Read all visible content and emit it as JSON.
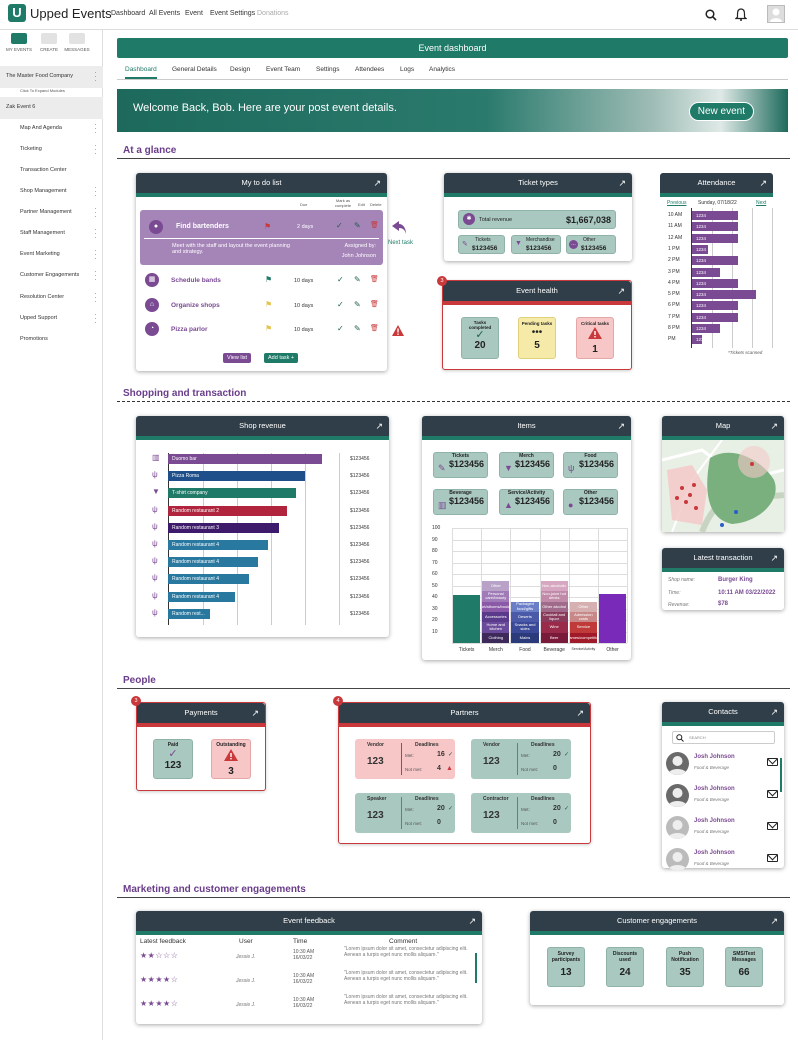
{
  "app": {
    "name": "Upped Events",
    "logo_letter": "U"
  },
  "topnav": [
    "Dashboard",
    "All Events",
    "Event",
    "Event Settings",
    "Donations"
  ],
  "sidebar": {
    "tabs": [
      "MY EVENTS",
      "CREATE",
      "MESSAGES"
    ],
    "company": "The Master Food Company",
    "expand_hint": "Click To Expand Modules",
    "event": "Zak Event 6",
    "items": [
      "Map And Agenda",
      "Ticketing",
      "Transaction Center",
      "Shop Management",
      "Partner Management",
      "Staff Management",
      "Event Marketing",
      "Customer Engagements",
      "Resolution Center",
      "Upped Support",
      "Promotions"
    ]
  },
  "dashboard": {
    "title": "Event dashboard",
    "tabs": [
      "Dashboard",
      "General Details",
      "Design",
      "Event Team",
      "Settings",
      "Attendees",
      "Logs",
      "Analytics"
    ],
    "welcome": "Welcome Back, Bob.  Here are your post event details.",
    "new_event": "New event"
  },
  "sections": {
    "glance": "At a glance",
    "shopping": "Shopping and transaction",
    "people": "People",
    "marketing": "Marketing and customer engagements"
  },
  "todo": {
    "title": "My to do list",
    "cols": [
      "Due",
      "Mark as complete",
      "Edit",
      "Delete"
    ],
    "featured": {
      "name": "Find bartenders",
      "due": "2 days",
      "desc": "Meet with the staff and layout the event planning and strategy.",
      "assigned_label": "Assigned by:",
      "assigned": "John Johnson"
    },
    "next_task": "Next task",
    "rows": [
      {
        "name": "Schedule bands",
        "due": "10 days"
      },
      {
        "name": "Organize shops",
        "due": "10 days"
      },
      {
        "name": "Pizza parlor",
        "due": "10 days"
      }
    ],
    "view_list": "View list",
    "add_task": "Add task +"
  },
  "ticket_types": {
    "title": "Ticket types",
    "total_label": "Total revenue",
    "total": "$1,667,038",
    "items": [
      {
        "label": "Tickets",
        "value": "$123456"
      },
      {
        "label": "Merchandise",
        "value": "$123456"
      },
      {
        "label": "Other",
        "value": "$123456"
      }
    ]
  },
  "event_health": {
    "title": "Event health",
    "badge": "3",
    "tiles": [
      {
        "label": "Tasks completed",
        "value": "20"
      },
      {
        "label": "Pending tasks",
        "value": "5"
      },
      {
        "label": "Critical tasks",
        "value": "1"
      }
    ]
  },
  "attendance": {
    "title": "Attendance",
    "prev": "Previous",
    "date": "Sunday, 07/18/22",
    "next": "Next",
    "note": "*Tickets scanned",
    "rows": [
      {
        "time": "10 AM",
        "value": "1234",
        "frac": 0.58
      },
      {
        "time": "11 AM",
        "value": "1234",
        "frac": 0.58
      },
      {
        "time": "12 AM",
        "value": "1234",
        "frac": 0.58
      },
      {
        "time": "1 PM",
        "value": "1234",
        "frac": 0.2
      },
      {
        "time": "2 PM",
        "value": "1234",
        "frac": 0.58
      },
      {
        "time": "3 PM",
        "value": "1234",
        "frac": 0.35
      },
      {
        "time": "4 PM",
        "value": "1234",
        "frac": 0.58
      },
      {
        "time": "5 PM",
        "value": "1234",
        "frac": 0.8
      },
      {
        "time": "6 PM",
        "value": "1234",
        "frac": 0.58
      },
      {
        "time": "7 PM",
        "value": "1234",
        "frac": 0.58
      },
      {
        "time": "8 PM",
        "value": "1234",
        "frac": 0.35
      },
      {
        "time": "PM",
        "value": "1234",
        "frac": 0.12
      }
    ]
  },
  "shop_revenue": {
    "title": "Shop revenue",
    "rows": [
      {
        "name": "Duomo bar",
        "value": "$123456",
        "frac": 0.99,
        "color": "#7a4a93"
      },
      {
        "name": "Pizza Roma",
        "value": "$123456",
        "frac": 0.88,
        "color": "#1e4f8a"
      },
      {
        "name": "T-shirt company",
        "value": "$123456",
        "frac": 0.82,
        "color": "#1f7a68"
      },
      {
        "name": "Random restaurant 2",
        "value": "$123456",
        "frac": 0.76,
        "color": "#b0243d"
      },
      {
        "name": "Random restaurant 3",
        "value": "$123456",
        "frac": 0.71,
        "color": "#3d1a6b"
      },
      {
        "name": "Random restaurant 4",
        "value": "$123456",
        "frac": 0.64,
        "color": "#2878a0"
      },
      {
        "name": "Random restaurant 4",
        "value": "$123456",
        "frac": 0.58,
        "color": "#2878a0"
      },
      {
        "name": "Random restaurant 4",
        "value": "$123456",
        "frac": 0.52,
        "color": "#2878a0"
      },
      {
        "name": "Random restaurant 4",
        "value": "$123456",
        "frac": 0.43,
        "color": "#2878a0"
      },
      {
        "name": "Random rest...",
        "value": "$123456",
        "frac": 0.27,
        "color": "#2878a0"
      }
    ]
  },
  "items": {
    "title": "Items",
    "tiles": [
      {
        "label": "Tickets",
        "value": "$123456"
      },
      {
        "label": "Merch",
        "value": "$123456"
      },
      {
        "label": "Food",
        "value": "$123456"
      },
      {
        "label": "Beverage",
        "value": "$123456"
      },
      {
        "label": "Service/Activity",
        "value": "$123456"
      },
      {
        "label": "Other",
        "value": "$123456"
      }
    ],
    "y_ticks": [
      "100",
      "90",
      "80",
      "70",
      "60",
      "50",
      "40",
      "30",
      "20",
      "10"
    ],
    "categories": [
      "Tickets",
      "Merch",
      "Food",
      "Beverage",
      "Service/Activity",
      "Other"
    ],
    "stack_labels": {
      "merch": [
        "Other",
        "Personal care/beauty",
        "Art/albums/books",
        "Accessories",
        "Home and kitchen",
        "Clothing"
      ],
      "food": [
        "Packaged food/gifts",
        "Deserts",
        "Snacks and sides",
        "Mains"
      ],
      "beverage": [
        "Non-alcoholic",
        "Non-juice hot drinks",
        "Other alcohol",
        "Cocktail and liquor",
        "Wine",
        "Beer"
      ],
      "service": [
        "Other",
        "Admission costs",
        "Service",
        "Games/competition"
      ]
    }
  },
  "map": {
    "title": "Map"
  },
  "latest_tx": {
    "title": "Latest transaction",
    "rows": [
      {
        "label": "Shop name:",
        "value": "Burger King"
      },
      {
        "label": "Time:",
        "value": "10:11 AM 03/22/2022"
      },
      {
        "label": "Revenue:",
        "value": "$78"
      }
    ]
  },
  "payments": {
    "title": "Payments",
    "badge": "3",
    "tiles": [
      {
        "label": "Paid",
        "value": "123"
      },
      {
        "label": "Outstanding",
        "value": "3"
      }
    ]
  },
  "partners": {
    "title": "Partners",
    "badge": "4",
    "deadlines_label": "Deadlines",
    "met_label": "Met:",
    "not_met_label": "Not met:",
    "boxes": [
      {
        "type": "Vendor",
        "count": "123",
        "met": "16",
        "not_met": "4"
      },
      {
        "type": "Vendor",
        "count": "123",
        "met": "20",
        "not_met": "0"
      },
      {
        "type": "Speaker",
        "count": "123",
        "met": "20",
        "not_met": "0"
      },
      {
        "type": "Contractor",
        "count": "123",
        "met": "20",
        "not_met": "0"
      }
    ]
  },
  "contacts": {
    "title": "Contacts",
    "search_placeholder": "SEARCH",
    "people": [
      {
        "name": "Josh Johnson",
        "role": "Food & Beverage"
      },
      {
        "name": "Josh Johnson",
        "role": "Food & Beverage"
      },
      {
        "name": "Josh Johnson",
        "role": "Food & Beverage"
      },
      {
        "name": "Josh Johnson",
        "role": "Food & Beverage"
      }
    ]
  },
  "feedback": {
    "title": "Event feedback",
    "cols": [
      "Latest feedback",
      "User",
      "Time",
      "Comment"
    ],
    "rows": [
      {
        "stars": "★★☆☆☆",
        "user": "Jessie J.",
        "time": "10:30 AM 16/03/22",
        "comment": "\"Lorem ipsum dolor sit amet, consectetur adipiscing elit. Aenean a turpis eget nunc mollis aliquam.\""
      },
      {
        "stars": "★★★★☆",
        "user": "Jessie J.",
        "time": "10:30 AM 16/03/22",
        "comment": "\"Lorem ipsum dolor sit amet, consectetur adipiscing elit. Aenean a turpis eget nunc mollis aliquam.\""
      },
      {
        "stars": "★★★★☆",
        "user": "Jessie J.",
        "time": "10:30 AM 16/03/22",
        "comment": "\"Lorem ipsum dolor sit amet, consectetur adipiscing elit. Aenean a turpis eget nunc mollis aliquam.\""
      }
    ]
  },
  "engagements": {
    "title": "Customer engagements",
    "tiles": [
      {
        "label": "Survey participants",
        "value": "13"
      },
      {
        "label": "Discounts used",
        "value": "24"
      },
      {
        "label": "Push Notification",
        "value": "35"
      },
      {
        "label": "SMS/Text Messages",
        "value": "66"
      }
    ]
  },
  "icons": {
    "arrow": "expand-arrow-icon",
    "search": "search-icon",
    "bell": "bell-icon"
  }
}
